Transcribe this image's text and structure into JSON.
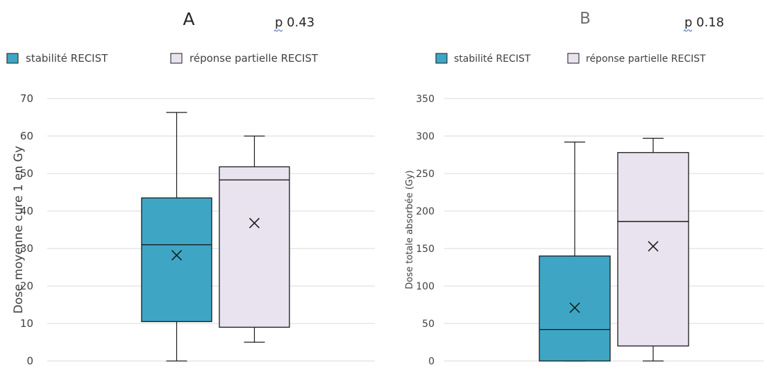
{
  "chart_data": [
    {
      "type": "box",
      "panel_label": "A",
      "pvalue_text": "p 0.43",
      "ylabel": "Dose moyenne cure 1 en Gy",
      "ylim": [
        0,
        70
      ],
      "yticks": [
        0,
        10,
        20,
        30,
        40,
        50,
        60,
        70
      ],
      "grid": true,
      "legend_position": "top-left",
      "series": [
        {
          "name": "stabilité RECIST",
          "color": "#3ea6c4",
          "min": 0,
          "q1": 10.5,
          "median": 31,
          "q3": 43.5,
          "max": 66.3,
          "mean": 28.2
        },
        {
          "name": "réponse partielle RECIST",
          "color": "#e8e3ee",
          "min": 5,
          "q1": 9,
          "median": 48.3,
          "q3": 51.8,
          "max": 60,
          "mean": 36.8
        }
      ]
    },
    {
      "type": "box",
      "panel_label": "B",
      "pvalue_text": "p 0.18",
      "ylabel": "Dose totale absorbée (Gy)",
      "ylim": [
        0,
        350
      ],
      "yticks": [
        0,
        50,
        100,
        150,
        200,
        250,
        300,
        350
      ],
      "grid": true,
      "legend_position": "top-left",
      "series": [
        {
          "name": "stabilité RECIST",
          "color": "#3ea6c4",
          "min": 0,
          "q1": 0,
          "median": 42,
          "q3": 140,
          "max": 292,
          "mean": 71
        },
        {
          "name": "réponse partielle RECIST",
          "color": "#e8e3ee",
          "min": 0,
          "q1": 20,
          "median": 186,
          "q3": 278,
          "max": 297,
          "mean": 153
        }
      ]
    }
  ]
}
